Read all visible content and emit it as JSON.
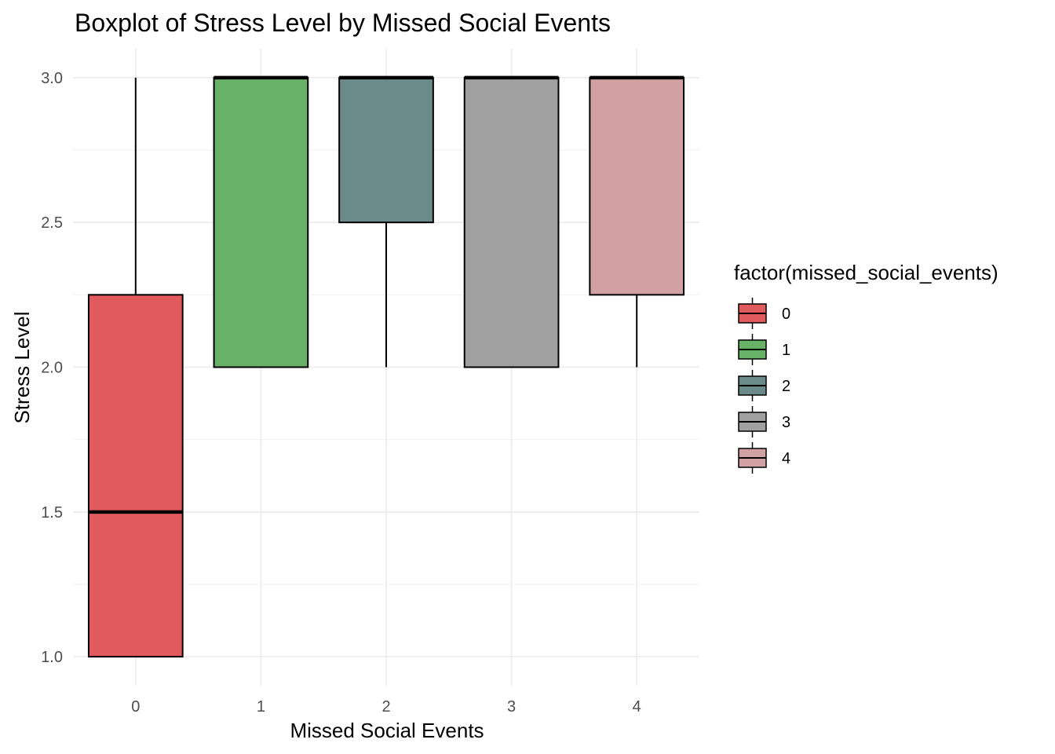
{
  "chart_data": {
    "type": "boxplot",
    "title": "Boxplot of Stress Level by Missed Social Events",
    "xlabel": "Missed Social Events",
    "ylabel": "Stress Level",
    "categories": [
      "0",
      "1",
      "2",
      "3",
      "4"
    ],
    "ylim": [
      0.9,
      3.1
    ],
    "yticks": [
      "1.0",
      "1.5",
      "2.0",
      "2.5",
      "3.0"
    ],
    "ytick_values": [
      1.0,
      1.5,
      2.0,
      2.5,
      3.0
    ],
    "grid": true,
    "legend_position": "right",
    "legend_title": "factor(missed_social_events)",
    "boxes": [
      {
        "category": "0",
        "lower_whisker": 1.0,
        "q1": 1.0,
        "median": 1.5,
        "q3": 2.25,
        "upper_whisker": 3.0,
        "color": "#E15B5E"
      },
      {
        "category": "1",
        "lower_whisker": 2.0,
        "q1": 2.0,
        "median": 3.0,
        "q3": 3.0,
        "upper_whisker": 3.0,
        "color": "#67B266"
      },
      {
        "category": "2",
        "lower_whisker": 2.0,
        "q1": 2.5,
        "median": 3.0,
        "q3": 3.0,
        "upper_whisker": 3.0,
        "color": "#6A8B8A"
      },
      {
        "category": "3",
        "lower_whisker": 2.0,
        "q1": 2.0,
        "median": 3.0,
        "q3": 3.0,
        "upper_whisker": 3.0,
        "color": "#A0A0A0"
      },
      {
        "category": "4",
        "lower_whisker": 2.0,
        "q1": 2.25,
        "median": 3.0,
        "q3": 3.0,
        "upper_whisker": 3.0,
        "color": "#D0A0A2"
      }
    ]
  }
}
